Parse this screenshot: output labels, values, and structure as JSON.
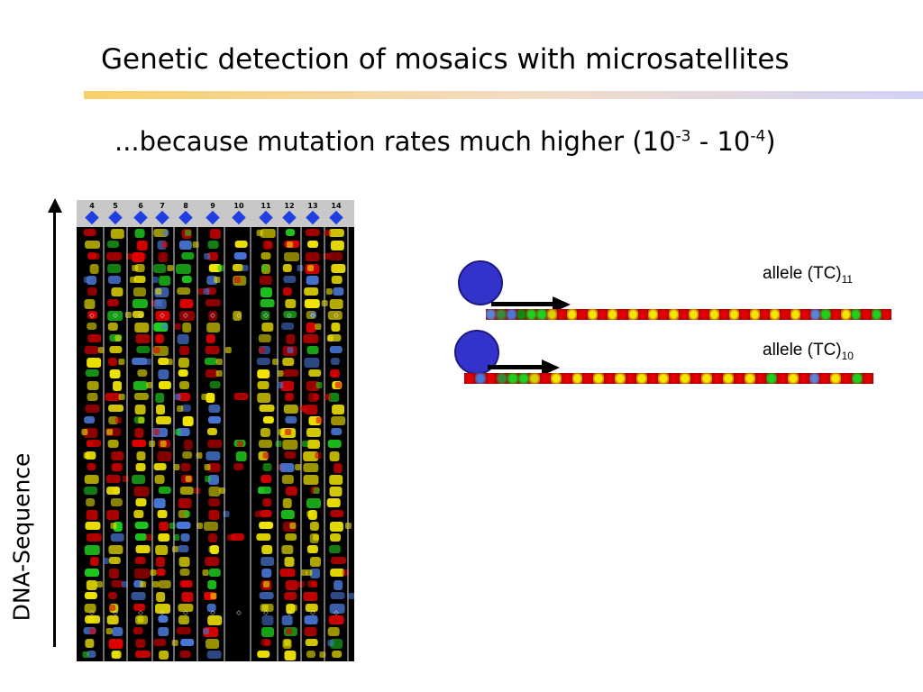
{
  "slide": {
    "title": "Genetic detection of mosaics with microsatellites",
    "subtitle": {
      "text_a": "...because mutation rates much higher (10",
      "exp_a": "-3",
      "text_b": " - 10",
      "exp_b": "-4",
      "text_c": ")"
    }
  },
  "gel": {
    "lanes": [
      "4",
      "5",
      "6",
      "7",
      "8",
      "9",
      "10",
      "11",
      "12",
      "13",
      "14"
    ],
    "marker_color": "#1f3fe0",
    "band_colors": {
      "yellow": "#f2e600",
      "red": "#e00000",
      "green": "#1fd01f",
      "blue": "#4a78d8"
    },
    "axis_label": "DNA-Sequence"
  },
  "alleles": [
    {
      "label": "allele (TC)",
      "subscript": "11",
      "repeats": 11
    },
    {
      "label": "allele (TC)",
      "subscript": "10",
      "repeats": 10
    }
  ],
  "colors": {
    "primer_circle": "#3333cc",
    "title_rule_start": "#f8d06a",
    "title_rule_end": "#d2d2f8"
  }
}
